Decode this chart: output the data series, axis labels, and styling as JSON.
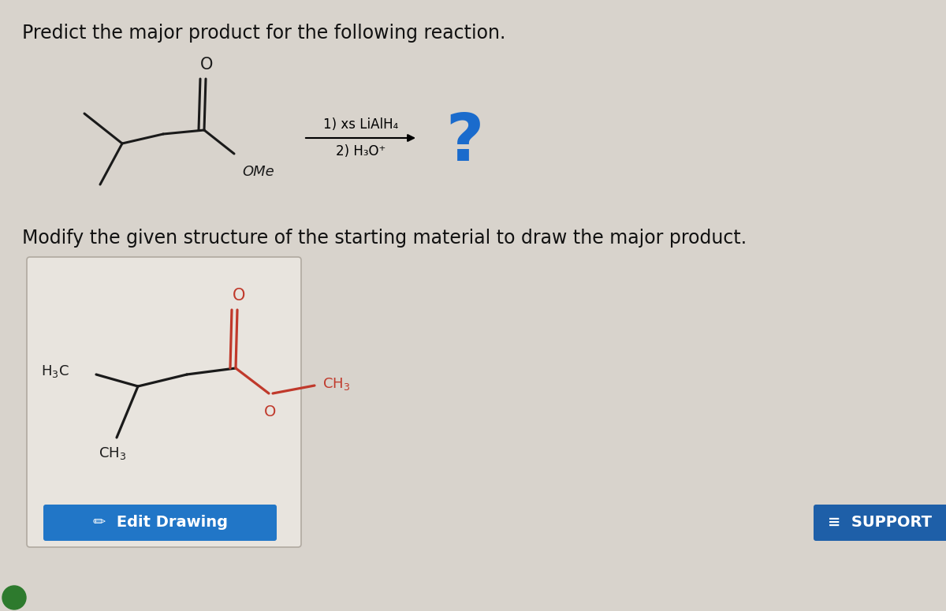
{
  "bg_color": "#d8d3cc",
  "title_text": "Predict the major product for the following reaction.",
  "title_fontsize": 17,
  "subtitle_text": "Modify the given structure of the starting material to draw the major product.",
  "subtitle_fontsize": 17,
  "reagent1": "1) xs LiAlH₄",
  "reagent2": "2) H₃O⁺",
  "question_color": "#1a6bcc",
  "question_fontsize": 60,
  "mol_black": "#1a1a1a",
  "mol_red": "#c0392b",
  "box_color": "#e8e4de",
  "edit_btn_color": "#2176c7",
  "support_btn_color": "#1e5fa8",
  "green_dot_color": "#2d7a2d"
}
